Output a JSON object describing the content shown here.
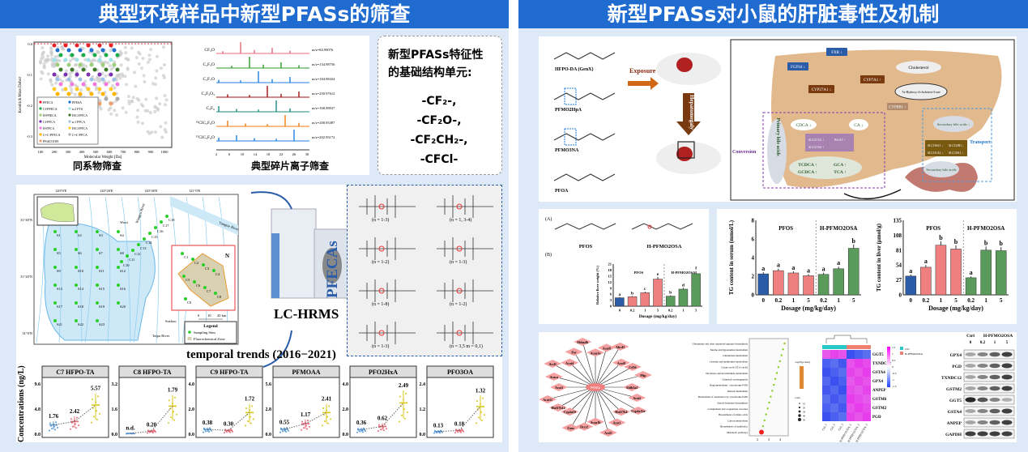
{
  "left": {
    "title": "典型环境样品中新型PFASs的筛查",
    "homolog": {
      "caption": "同系物筛查",
      "xlabel": "Molecular Weight [Da]",
      "ylabel": "Kendrick Mass Defect",
      "xticks": [
        "100",
        "200",
        "300",
        "400",
        "500",
        "600",
        "700",
        "800",
        "900",
        "1000"
      ],
      "yticks": [
        "0.0",
        "-0.1",
        "-0.2",
        "-0.3"
      ],
      "legend": [
        {
          "name": "PFECA",
          "color": "#e8202a"
        },
        {
          "name": "PFESA",
          "color": "#1f6fd0"
        },
        {
          "name": "Cl-PFECA",
          "color": "#1aab4b"
        },
        {
          "name": "n:2 FTS",
          "color": "#9fe3e8"
        },
        {
          "name": "H-PFECA",
          "color": "#9ccf7a"
        },
        {
          "name": "H/Cl-PFCA",
          "color": "#3d7a2a"
        },
        {
          "name": "Cl-PFCA",
          "color": "#7a32b0"
        },
        {
          "name": "n:1 PFCA",
          "color": "#9fc0e8"
        },
        {
          "name": "H-PFCA",
          "color": "#f07ae0"
        },
        {
          "name": "H/Cl-PFCA",
          "color": "#ffc928"
        },
        {
          "name": "C=C-PFECA",
          "color": "#ffb400"
        },
        {
          "name": "C=C-PFCA",
          "color": "#aaaaaa"
        },
        {
          "name": "PFdiCOOH",
          "color": "#f0a070"
        }
      ]
    },
    "fragments": {
      "caption": "典型碎片离子筛查",
      "xticks": [
        "2",
        "6",
        "10",
        "14",
        "18",
        "22",
        "26",
        "30"
      ],
      "ions": [
        {
          "formula": "CF₃O",
          "mz": "m/z=84.99076",
          "color": "#e86a78"
        },
        {
          "formula": "C₂F₅O",
          "mz": "m/z=134.98756",
          "color": "#2a9a2a"
        },
        {
          "formula": "C₃F₇O",
          "mz": "m/z=184.98434",
          "color": "#1f7fe0"
        },
        {
          "formula": "C₄F₉O₃",
          "mz": "m/z=250.97612",
          "color": "#a01010"
        },
        {
          "formula": "C₃F₆",
          "mz": "m/z=168.98937",
          "color": "#1a8a80"
        },
        {
          "formula": "³⁵ClC₃F₆O",
          "mz": "m/z=200.95497",
          "color": "#f07a10"
        },
        {
          "formula": "³⁷ClC₃F₆O",
          "mz": "m/z=202.95172",
          "color": "#1f7fe0"
        }
      ]
    },
    "units": {
      "heading_1": "新型PFASs特征性",
      "heading_2": "的基础结构单元:",
      "items": [
        "-CF₂-,",
        "-CF₂O-,",
        "-CF₂CH₂-,",
        "-CFCl-"
      ]
    },
    "map": {
      "lon": [
        "120°0'E",
        "120°20'E",
        "120°40'E",
        "121°0'E"
      ],
      "lat": [
        "31°40'N",
        "31°20'N",
        "31°0'N"
      ],
      "rivers": [
        "Yangtze River",
        "Wangyu River",
        "Taipu River"
      ],
      "cities": [
        "Wuxi",
        "Suzhou"
      ],
      "scale": [
        "0",
        "10",
        "20 km"
      ],
      "north": "N",
      "sites": [
        "S1",
        "S2",
        "S3",
        "S4",
        "S5",
        "S6",
        "S7",
        "S8",
        "S9",
        "S10",
        "S11",
        "S12",
        "S13",
        "S14",
        "S15",
        "S16",
        "S17",
        "S18",
        "S19",
        "S20",
        "S21",
        "S22",
        "S23",
        "C1",
        "C2",
        "C3",
        "C4",
        "C5",
        "C6",
        "C7",
        "C8",
        "C9",
        "C10",
        "C11",
        "C12",
        "C13",
        "C14",
        "C15",
        "C16",
        "C17",
        "C18"
      ],
      "legend_title": "Legend",
      "legend_items": [
        "Sampling Sites",
        "Fluorochemical Zone"
      ]
    },
    "instrument": "LC-HRMS",
    "pfecas": {
      "title": "PFECAs",
      "ranges": [
        "(n = 1-3)",
        "(n = 1, 3-4)",
        "(n = 1-2)",
        "(n = 1-3)",
        "(n = 1-8)",
        "(n = 1-2)",
        "(n = 1-3)",
        "(n = 3,5 m = 0,1)"
      ]
    },
    "trends": {
      "title": "temporal trends (2016−2021)",
      "ylabel": "Concentrations (ng/L)",
      "panels": [
        {
          "name": "C7 HFPO-TA",
          "yticks": [
            "0.0",
            "4.8",
            "9.6"
          ],
          "ymax": 9.6,
          "values": [
            1.76,
            2.42,
            5.57
          ],
          "labels": [
            "1.76",
            "2.42",
            "5.57"
          ]
        },
        {
          "name": "C8 HFPO-TA",
          "yticks": [
            "0.0",
            "1.6",
            "3.2"
          ],
          "ymax": 3.2,
          "values": [
            0.05,
            0.2,
            1.79
          ],
          "labels": [
            "n.d.",
            "0.20",
            "1.79"
          ]
        },
        {
          "name": "C9 HFPO-TA",
          "yticks": [
            "0.0",
            "2.0",
            "4.0"
          ],
          "ymax": 4.0,
          "values": [
            0.38,
            0.3,
            1.72
          ],
          "labels": [
            "0.38",
            "0.30",
            "1.72"
          ]
        },
        {
          "name": "PFMOAA",
          "yticks": [
            "0.0",
            "2.8",
            "5.6"
          ],
          "ymax": 5.6,
          "values": [
            0.55,
            1.17,
            2.41
          ],
          "labels": [
            "0.55",
            "1.17",
            "2.41"
          ]
        },
        {
          "name": "PFO2HxA",
          "yticks": [
            "0.0",
            "2.0",
            "4.0"
          ],
          "ymax": 4.0,
          "values": [
            0.36,
            0.62,
            2.49
          ],
          "labels": [
            "0.36",
            "0.62",
            "2.49"
          ]
        },
        {
          "name": "PFO3OA",
          "yticks": [
            "0.0",
            "1.2",
            "2.4"
          ],
          "ymax": 2.4,
          "values": [
            0.13,
            0.18,
            1.32
          ],
          "labels": [
            "0.13",
            "0.18",
            "1.32"
          ]
        }
      ],
      "colors": [
        "#5b9bd5",
        "#e86a78",
        "#d9c81a"
      ]
    }
  },
  "right": {
    "title": "新型PFASs对小鼠的肝脏毒性及机制",
    "compounds": [
      "HFPO-DA (GenX)",
      "PFMO2HpA",
      "PFMO3NA",
      "PFOA"
    ],
    "exposure": "Exposure",
    "hepatomegaly": "Hepatomegaly",
    "liver": {
      "boxes_blue": [
        "FXR ↓",
        "FGF04 ↓"
      ],
      "boxes_brown": [
        "CYP27A1 ↓",
        "CYP7A1 ↑"
      ],
      "cyp8b1": "CYP8B1 ↑",
      "cholesterol": "Cholesterol",
      "hydroxy": "7α-Hydroxy-4-cholesten-3-one",
      "cdca": "CDCA ↓",
      "ca": "CA ↓",
      "primary": "Primary bile acids",
      "slc": [
        "SLC27A2 ↑",
        "BAAT ↑",
        "SLC27A5 ↑"
      ],
      "conj": [
        "TCDCA ↑",
        "GCA ↑",
        "GCDCA ↑",
        "TCA ↑"
      ],
      "conversion": "Conversion",
      "transport": "Transport",
      "secondary_top": "Secondary bile acids ↓",
      "secondary_bottom": "Secondary bile acids",
      "transporters": [
        "SLCO6A1 ↓",
        "SLCO2B1 ↓",
        "SLCO1A2 ↓",
        "SLC10A1 ↓"
      ]
    },
    "structures": {
      "label_a": "(A)",
      "label_b": "(B)",
      "names": [
        "PFOS",
        "H-PFMO2OSA"
      ]
    },
    "groups": [
      "PFOS",
      "H-PFMO2OSA"
    ],
    "chart_data": [
      {
        "type": "bar",
        "ylabel": "Relative liver weight (%)",
        "xlabel": "Dosage (mg/kg/day)",
        "categories": [
          "0",
          "0.2",
          "1",
          "5",
          "0.2",
          "1",
          "5"
        ],
        "values": [
          4.2,
          4.7,
          6.7,
          13.5,
          5.0,
          8.5,
          16.2
        ],
        "letters": [
          "a",
          "b",
          "c",
          "e",
          "b",
          "d",
          "f"
        ],
        "ylim": [
          0,
          21
        ],
        "yticks": [
          "0",
          "3",
          "6",
          "9",
          "12",
          "15",
          "18",
          "21"
        ],
        "colors": [
          "#2a5ca8",
          "#f08080",
          "#f08080",
          "#f08080",
          "#5a9a5a",
          "#5a9a5a",
          "#5a9a5a"
        ]
      },
      {
        "type": "bar",
        "ylabel": "TG content in serum (mmol/L)",
        "xlabel": "Dosage (mg/kg/day)",
        "categories": [
          "0",
          "0.2",
          "1",
          "5",
          "0.2",
          "1",
          "5"
        ],
        "values": [
          2.25,
          2.6,
          2.35,
          2.05,
          2.2,
          2.8,
          5.0
        ],
        "letters": [
          "a",
          "a",
          "a",
          "a",
          "a",
          "a",
          "b"
        ],
        "ylim": [
          0,
          8
        ],
        "yticks": [
          "0",
          "2",
          "4",
          "6",
          "8"
        ],
        "colors": [
          "#2a5ca8",
          "#f08080",
          "#f08080",
          "#f08080",
          "#5a9a5a",
          "#5a9a5a",
          "#5a9a5a"
        ]
      },
      {
        "type": "bar",
        "ylabel": "TG content in liver (μmol/g)",
        "xlabel": "Dosage (mg/kg/day)",
        "categories": [
          "0",
          "0.2",
          "1",
          "5",
          "0.2",
          "1",
          "5"
        ],
        "values": [
          34,
          50,
          90,
          83,
          31,
          81,
          80
        ],
        "letters": [
          "a",
          "a",
          "b",
          "b",
          "a",
          "b",
          "b"
        ],
        "ylim": [
          0,
          135
        ],
        "yticks": [
          "0",
          "27",
          "54",
          "81",
          "108",
          "135"
        ],
        "colors": [
          "#2a5ca8",
          "#f08080",
          "#f08080",
          "#f08080",
          "#5a9a5a",
          "#5a9a5a",
          "#5a9a5a"
        ]
      }
    ],
    "network": {
      "center": "PPARα",
      "nodes": [
        "Aldh3a2",
        "Acot2",
        "Cyp4a12a",
        "Hsd17b4",
        "Acot1",
        "Acsl5",
        "Acaa1b",
        "Decr2",
        "Fasn",
        "Cyp4a10",
        "Hsd17b12",
        "Acot11",
        "Acot3",
        "Acaca",
        "Acsl1",
        "Acot4",
        "Por",
        "Ehhadh",
        "Acaa1a",
        "Acadl",
        "Abcd3",
        "Acot8",
        "Cd36",
        "Pltp"
      ]
    },
    "enrichment": {
      "terms": [
        "Ubiquinone and other terpenoid-quinone biosynthesis",
        "Taurine and hypotaurine metabolism",
        "Glutathione metabolism",
        "Cysteine and methionine metabolism",
        "Citrate cycle (TCA cycle)",
        "Nicotinate and nicotinamide metabolism",
        "Chemical carcinogenesis",
        "Drug metabolism - cytochrome P450",
        "Retinol metabolism",
        "Metabolism of xenobiotics by cytochrome P450",
        "Steroid hormone biosynthesis",
        "Complement and coagulation cascades",
        "Biosynthesis of amino acids",
        "Carbon metabolism",
        "Biosynthesis of antibiotics",
        "Metabolic pathways"
      ],
      "xticks": [
        "2",
        "3",
        "4"
      ],
      "legend_title": "-log10(p-value)",
      "count_title": "count",
      "counts": [
        "10",
        "20",
        "30",
        "40",
        "50"
      ]
    },
    "heatmap": {
      "genes": [
        "GGT5",
        "TXNDC12",
        "GSTA4",
        "GPX4",
        "ANPEP",
        "GSTM6",
        "GSTM2",
        "PGD"
      ],
      "samples": [
        "Ctrl_1",
        "Ctrl_2",
        "Ctrl_3",
        "H-PFMO2OSA_1",
        "H-PFMO2OSA_2",
        "H-PFMO2OSA_3"
      ],
      "groups": [
        "Ctrl",
        "H-PFMO2OSA"
      ],
      "scale": [
        "1.5",
        "1",
        "0.5",
        "0",
        "-0.5",
        "-1",
        "-1.5"
      ]
    },
    "western": {
      "groups": [
        "Ctrl",
        "H-PFMO2OSA"
      ],
      "doses": [
        "0",
        "0.2",
        "1",
        "5"
      ],
      "proteins": [
        "GPX4",
        "PGD",
        "TXNDC12",
        "GSTM2",
        "GGT5",
        "GSTA4",
        "ANPEP",
        "GAPDH"
      ]
    }
  }
}
